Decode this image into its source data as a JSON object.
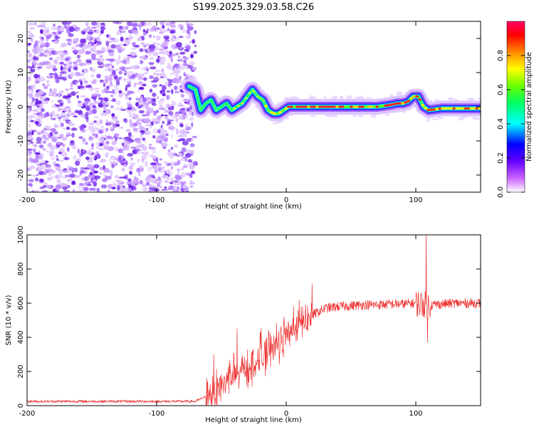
{
  "title": "S199.2025.329.03.58.C26",
  "chart_data": [
    {
      "type": "heatmap",
      "name": "spectrogram",
      "xlabel": "Height of straight line (km)",
      "ylabel": "Frequency (Hz)",
      "xlim": [
        -200,
        150
      ],
      "ylim": [
        -25,
        25
      ],
      "xticks": [
        -200,
        -100,
        0,
        100
      ],
      "yticks": [
        -20,
        -10,
        0,
        10,
        20
      ],
      "colorbar": {
        "label": "Normalized spectral amplitude",
        "range": [
          0,
          1
        ],
        "ticks": [
          "0.0",
          "0.2",
          "0.4",
          "0.6",
          "0.8"
        ],
        "colors": [
          "#ffffff",
          "#cc66ff",
          "#6600ff",
          "#0000ff",
          "#00ffff",
          "#00ff66",
          "#66ff00",
          "#ffff00",
          "#ff8800",
          "#ff0000",
          "#ff0066"
        ]
      },
      "noise_region_x": [
        -200,
        -70
      ],
      "ridge": {
        "x": [
          -75,
          -70,
          -66,
          -62,
          -58,
          -54,
          -50,
          -46,
          -42,
          -38,
          -34,
          -30,
          -26,
          -22,
          -18,
          -14,
          -10,
          -6,
          -2,
          2,
          6,
          10,
          15,
          20,
          30,
          40,
          50,
          60,
          70,
          80,
          86,
          90,
          94,
          98,
          102,
          106,
          110,
          120,
          130,
          140,
          150
        ],
        "y": [
          6,
          5,
          -1,
          1,
          2,
          -1,
          0,
          1,
          -1,
          0,
          1,
          3,
          5,
          3,
          2,
          -1,
          -2,
          -2,
          -1,
          0,
          0,
          0,
          0,
          0,
          0,
          0,
          0,
          0,
          0,
          0.5,
          1,
          1,
          1.5,
          3,
          3,
          0,
          -1,
          -0.5,
          -0.5,
          -0.5,
          -0.5
        ]
      }
    },
    {
      "type": "line",
      "name": "snr",
      "xlabel": "Height of straight line (km)",
      "ylabel": "SNR (10 * v/v)",
      "xlim": [
        -200,
        150
      ],
      "ylim": [
        0,
        1000
      ],
      "xticks": [
        -200,
        -100,
        0,
        100
      ],
      "yticks": [
        0,
        200,
        400,
        600,
        800,
        1000
      ],
      "color": "#ee3333",
      "trend": {
        "x": [
          -200,
          -70,
          -60,
          -50,
          -40,
          -30,
          -20,
          -10,
          0,
          10,
          20,
          30,
          40,
          50,
          60,
          70,
          80,
          90,
          100,
          110,
          120,
          130,
          140,
          150
        ],
        "y": [
          25,
          25,
          60,
          120,
          170,
          210,
          260,
          330,
          400,
          470,
          530,
          570,
          580,
          585,
          590,
          590,
          595,
          595,
          600,
          590,
          595,
          600,
          600,
          600
        ]
      },
      "peaks": [
        {
          "x": -56,
          "y": 300
        },
        {
          "x": -38,
          "y": 450
        },
        {
          "x": -20,
          "y": 430
        },
        {
          "x": 108,
          "y": 1000
        },
        {
          "x": 109,
          "y": 370
        }
      ]
    }
  ]
}
